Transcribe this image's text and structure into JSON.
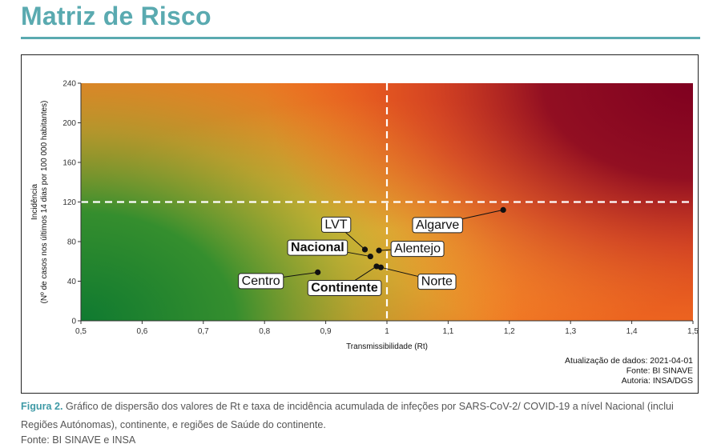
{
  "page": {
    "title": "Matriz de Risco"
  },
  "caption": {
    "figure_label": "Figura 2.",
    "text": " Gráfico de dispersão dos valores de Rt e taxa de incidência acumulada de infeções por SARS-CoV-2/ COVID-19 a nível Nacional (inclui Regiões Autónomas), continente, e regiões de Saúde do continente.",
    "source": "Fonte: BI SINAVE e INSA"
  },
  "chart_data": {
    "type": "scatter",
    "title": "",
    "xlabel": "Transmissibilidade (Rt)",
    "ylabel_lines": [
      "Incidência",
      "(Nº de casos nos últimos 14 dias por 100 000 habitantes)"
    ],
    "xlim": [
      0.5,
      1.5
    ],
    "ylim": [
      0,
      240
    ],
    "x_ticks": [
      "0,5",
      "0,6",
      "0,7",
      "0,8",
      "0,9",
      "1",
      "1,1",
      "1,2",
      "1,3",
      "1,4",
      "1,5"
    ],
    "x_tick_values": [
      0.5,
      0.6,
      0.7,
      0.8,
      0.9,
      1.0,
      1.1,
      1.2,
      1.3,
      1.4,
      1.5
    ],
    "y_ticks": [
      "0",
      "40",
      "80",
      "120",
      "160",
      "200",
      "240"
    ],
    "y_tick_values": [
      0,
      40,
      80,
      120,
      160,
      200,
      240
    ],
    "reference_lines": {
      "x": 1.0,
      "y": 120
    },
    "background": "risk gradient: green (low Rt, low incidence) to dark red (high Rt, high incidence)",
    "colors": {
      "low_risk": "#0f7a30",
      "medium_risk": "#f4b632",
      "high_risk": "#ef5a1c",
      "max_risk": "#7f0020",
      "points": "#111111",
      "reference_lines": "#ffffff"
    },
    "points": [
      {
        "name": "Algarve",
        "x": 1.19,
        "y": 112,
        "bold": false
      },
      {
        "name": "LVT",
        "x": 0.964,
        "y": 72,
        "bold": false
      },
      {
        "name": "Alentejo",
        "x": 0.987,
        "y": 71,
        "bold": false
      },
      {
        "name": "Nacional",
        "x": 0.973,
        "y": 65,
        "bold": true
      },
      {
        "name": "Continente",
        "x": 0.983,
        "y": 55,
        "bold": true
      },
      {
        "name": "Norte",
        "x": 0.99,
        "y": 54,
        "bold": false
      },
      {
        "name": "Centro",
        "x": 0.887,
        "y": 49,
        "bold": false
      }
    ],
    "annotations": [
      "Atualização de dados: 2021-04-01",
      "Fonte: BI SINAVE",
      "Autoria: INSA/DGS"
    ]
  }
}
